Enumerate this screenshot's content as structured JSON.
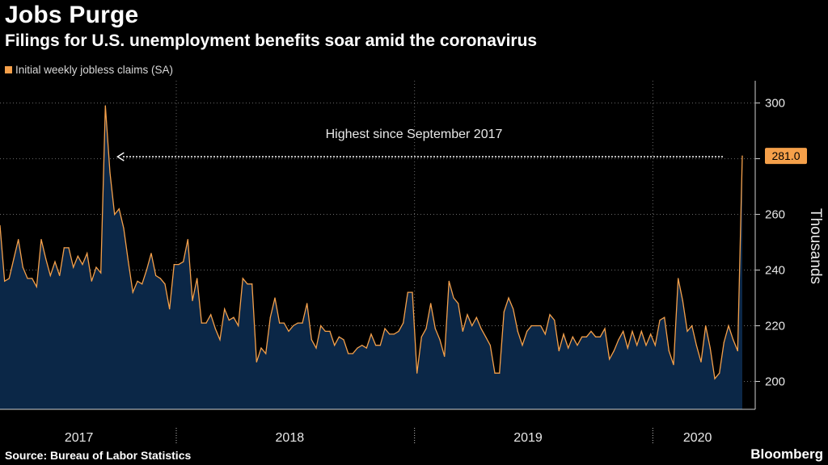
{
  "header": {
    "title": "Jobs Purge",
    "subtitle": "Filings for U.S. unemployment benefits soar amid the coronavirus",
    "legend_label": "Initial weekly jobless claims (SA)"
  },
  "footer": {
    "source": "Source: Bureau of Labor Statistics",
    "brand": "Bloomberg"
  },
  "colors": {
    "line": "#f5a04a",
    "fill": "#0b2747",
    "label_bg": "#f5a04a"
  },
  "chart_data": {
    "type": "area",
    "ylabel": "Thousands",
    "ylim": [
      190,
      308
    ],
    "yticks": [
      "200",
      "220",
      "240",
      "260",
      "280",
      "300"
    ],
    "x_labels": [
      "2017",
      "2018",
      "2019",
      "2020"
    ],
    "annotation": "Highest since September 2017",
    "last_value_label": "281.0",
    "grid": true,
    "legend_position": "top-left",
    "series": [
      {
        "name": "Initial weekly jobless claims (SA)",
        "values": [
          256,
          236,
          237,
          244,
          251,
          241,
          237,
          237,
          234,
          251,
          244,
          238,
          243,
          238,
          248,
          248,
          241,
          245,
          242,
          246,
          236,
          241,
          239,
          299,
          275,
          260,
          262,
          255,
          243,
          232,
          236,
          235,
          240,
          246,
          238,
          237,
          235,
          226,
          242,
          242,
          243,
          251,
          229,
          237,
          221,
          221,
          224,
          219,
          215,
          226,
          222,
          223,
          220,
          237,
          235,
          235,
          207,
          212,
          210,
          223,
          230,
          221,
          221,
          218,
          220,
          221,
          221,
          228,
          215,
          212,
          220,
          218,
          218,
          213,
          216,
          215,
          210,
          210,
          212,
          213,
          212,
          217,
          213,
          213,
          219,
          217,
          217,
          218,
          221,
          232,
          232,
          203,
          216,
          219,
          228,
          219,
          215,
          209,
          236,
          230,
          228,
          218,
          224,
          220,
          223,
          219,
          216,
          213,
          203,
          203,
          225,
          230,
          226,
          218,
          213,
          218,
          220,
          220,
          220,
          217,
          224,
          222,
          211,
          217,
          212,
          216,
          213,
          216,
          216,
          218,
          216,
          216,
          219,
          208,
          211,
          215,
          218,
          212,
          218,
          213,
          218,
          213,
          217,
          213,
          222,
          223,
          211,
          206,
          237,
          229,
          218,
          220,
          213,
          207,
          220,
          212,
          201,
          203,
          214,
          220,
          215,
          211,
          281
        ]
      }
    ]
  }
}
